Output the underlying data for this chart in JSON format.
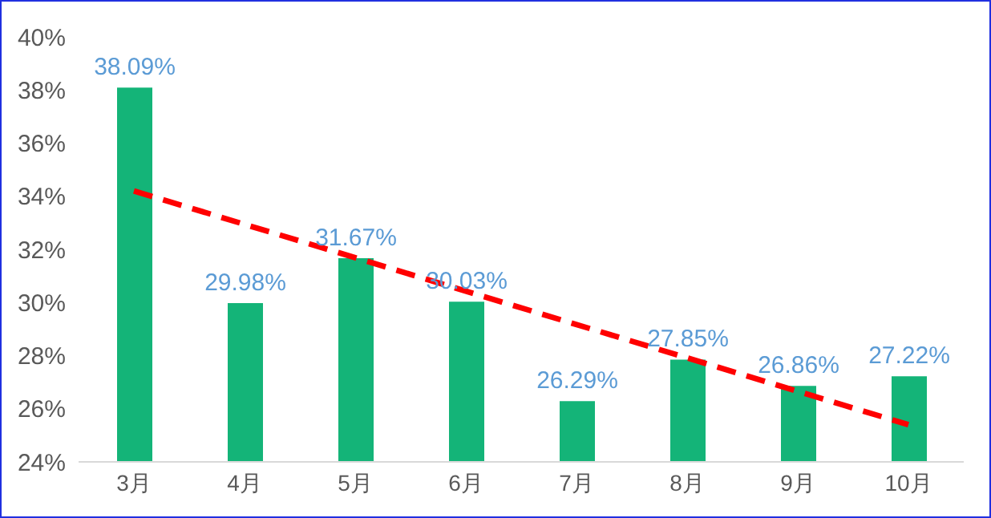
{
  "chart_data": {
    "type": "bar",
    "categories": [
      "3月",
      "4月",
      "5月",
      "6月",
      "7月",
      "8月",
      "9月",
      "10月"
    ],
    "series": [
      {
        "color": "#14b478",
        "values": [
          38.09,
          29.98,
          31.67,
          30.03,
          26.29,
          27.85,
          26.86,
          27.22
        ],
        "value_labels": [
          "38.09%",
          "29.98%",
          "31.67%",
          "30.03%",
          "26.29%",
          "27.85%",
          "26.86%",
          "27.22%"
        ]
      },
      {
        "type": "line",
        "color": "#ff0000",
        "line_style": "dashed",
        "values": [
          34.2,
          null,
          null,
          null,
          null,
          null,
          null,
          25.4
        ]
      }
    ],
    "ylim": [
      24,
      40
    ],
    "yticks": [
      {
        "value": 24,
        "label": "24%"
      },
      {
        "value": 26,
        "label": "26%"
      },
      {
        "value": 28,
        "label": "28%"
      },
      {
        "value": 30,
        "label": "30%"
      },
      {
        "value": 32,
        "label": "32%"
      },
      {
        "value": 34,
        "label": "34%"
      },
      {
        "value": 36,
        "label": "36%"
      },
      {
        "value": 38,
        "label": "38%"
      },
      {
        "value": 40,
        "label": "40%"
      }
    ],
    "grid": false,
    "legend": false,
    "marker": "none"
  }
}
